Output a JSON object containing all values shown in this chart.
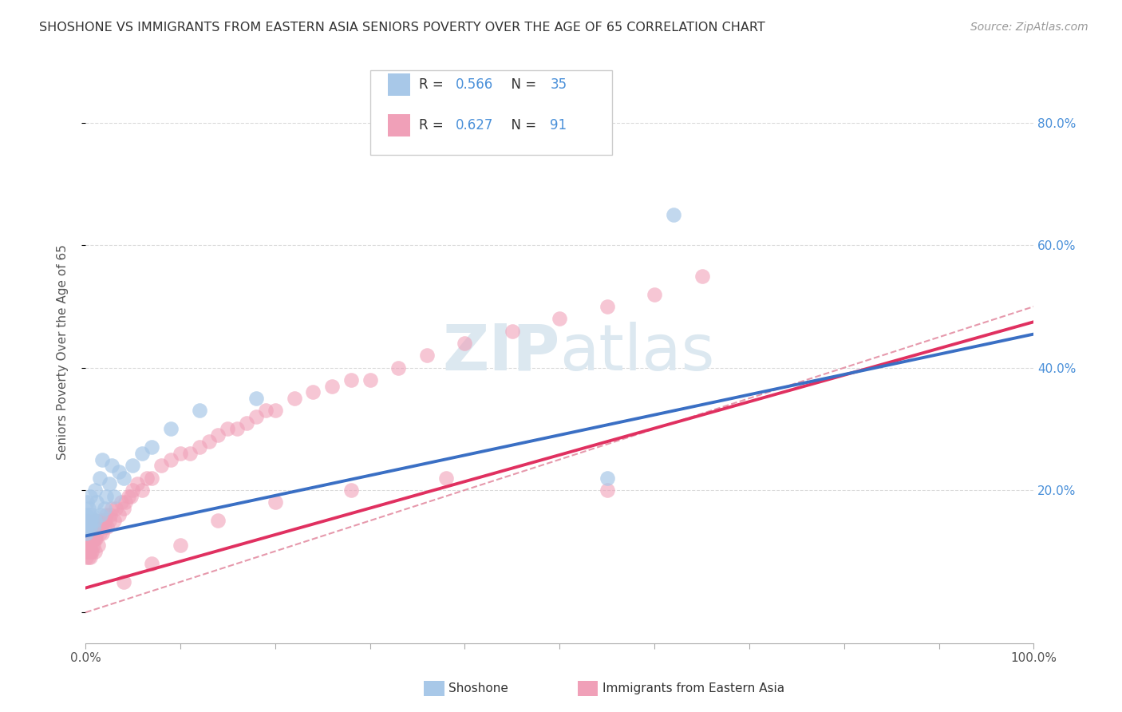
{
  "title": "SHOSHONE VS IMMIGRANTS FROM EASTERN ASIA SENIORS POVERTY OVER THE AGE OF 65 CORRELATION CHART",
  "source": "Source: ZipAtlas.com",
  "ylabel": "Seniors Poverty Over the Age of 65",
  "xlim": [
    0,
    1.0
  ],
  "ylim": [
    -0.05,
    0.9
  ],
  "shoshone_R": 0.566,
  "shoshone_N": 35,
  "immigrants_R": 0.627,
  "immigrants_N": 91,
  "shoshone_color": "#a8c8e8",
  "immigrants_color": "#f0a0b8",
  "trend_shoshone_color": "#3a6fc4",
  "trend_immigrants_color": "#e03060",
  "dash_color": "#e08098",
  "watermark_color": "#dce8f0",
  "legend_label_shoshone": "Shoshone",
  "legend_label_immigrants": "Immigrants from Eastern Asia",
  "background_color": "#ffffff",
  "grid_color": "#cccccc",
  "raxis_color": "#4a90d9",
  "shoshone_x": [
    0.0,
    0.0,
    0.0,
    0.001,
    0.002,
    0.002,
    0.003,
    0.003,
    0.004,
    0.005,
    0.005,
    0.006,
    0.007,
    0.008,
    0.01,
    0.01,
    0.012,
    0.015,
    0.016,
    0.018,
    0.02,
    0.022,
    0.025,
    0.028,
    0.03,
    0.035,
    0.04,
    0.05,
    0.06,
    0.07,
    0.09,
    0.12,
    0.18,
    0.55,
    0.62
  ],
  "shoshone_y": [
    0.14,
    0.15,
    0.16,
    0.13,
    0.14,
    0.18,
    0.15,
    0.17,
    0.16,
    0.14,
    0.19,
    0.15,
    0.16,
    0.14,
    0.15,
    0.2,
    0.18,
    0.22,
    0.16,
    0.25,
    0.17,
    0.19,
    0.21,
    0.24,
    0.19,
    0.23,
    0.22,
    0.24,
    0.26,
    0.27,
    0.3,
    0.33,
    0.35,
    0.22,
    0.65
  ],
  "immigrants_x": [
    0.0,
    0.0,
    0.0,
    0.0,
    0.0,
    0.001,
    0.001,
    0.002,
    0.002,
    0.002,
    0.003,
    0.003,
    0.003,
    0.004,
    0.004,
    0.005,
    0.005,
    0.005,
    0.006,
    0.006,
    0.007,
    0.007,
    0.008,
    0.008,
    0.009,
    0.01,
    0.01,
    0.01,
    0.011,
    0.012,
    0.013,
    0.014,
    0.015,
    0.016,
    0.017,
    0.018,
    0.019,
    0.02,
    0.021,
    0.022,
    0.023,
    0.025,
    0.026,
    0.028,
    0.03,
    0.032,
    0.035,
    0.038,
    0.04,
    0.042,
    0.045,
    0.048,
    0.05,
    0.055,
    0.06,
    0.065,
    0.07,
    0.08,
    0.09,
    0.1,
    0.11,
    0.12,
    0.13,
    0.14,
    0.15,
    0.16,
    0.17,
    0.18,
    0.19,
    0.2,
    0.22,
    0.24,
    0.26,
    0.28,
    0.3,
    0.33,
    0.36,
    0.4,
    0.45,
    0.5,
    0.55,
    0.6,
    0.65,
    0.55,
    0.38,
    0.28,
    0.2,
    0.14,
    0.1,
    0.07,
    0.04
  ],
  "immigrants_y": [
    0.1,
    0.11,
    0.12,
    0.13,
    0.14,
    0.09,
    0.12,
    0.1,
    0.13,
    0.15,
    0.09,
    0.11,
    0.14,
    0.1,
    0.13,
    0.09,
    0.11,
    0.14,
    0.1,
    0.13,
    0.1,
    0.12,
    0.11,
    0.14,
    0.12,
    0.1,
    0.12,
    0.15,
    0.12,
    0.13,
    0.11,
    0.14,
    0.13,
    0.15,
    0.14,
    0.13,
    0.15,
    0.14,
    0.15,
    0.16,
    0.14,
    0.15,
    0.16,
    0.17,
    0.15,
    0.17,
    0.16,
    0.18,
    0.17,
    0.18,
    0.19,
    0.19,
    0.2,
    0.21,
    0.2,
    0.22,
    0.22,
    0.24,
    0.25,
    0.26,
    0.26,
    0.27,
    0.28,
    0.29,
    0.3,
    0.3,
    0.31,
    0.32,
    0.33,
    0.33,
    0.35,
    0.36,
    0.37,
    0.38,
    0.38,
    0.4,
    0.42,
    0.44,
    0.46,
    0.48,
    0.5,
    0.52,
    0.55,
    0.2,
    0.22,
    0.2,
    0.18,
    0.15,
    0.11,
    0.08,
    0.05
  ]
}
